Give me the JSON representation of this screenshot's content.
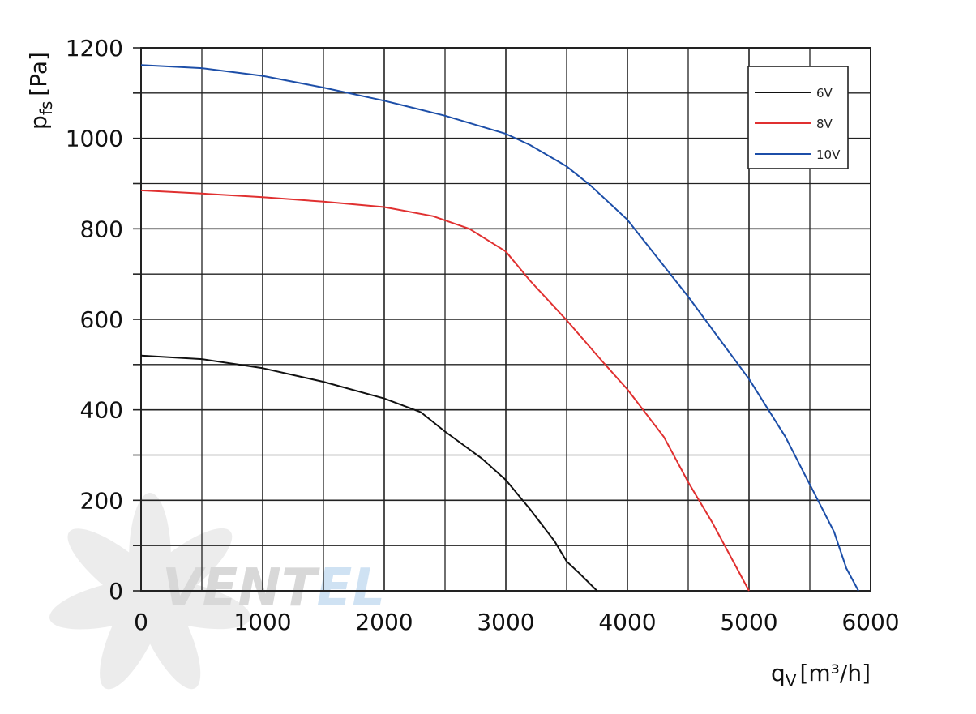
{
  "chart_data": {
    "type": "line",
    "xlabel": {
      "main": "q",
      "sub": "V",
      "unit": "[m³/h]"
    },
    "ylabel": {
      "main": "p",
      "sub": "fs",
      "unit": "[Pa]"
    },
    "xlim": [
      0,
      6000
    ],
    "ylim": [
      0,
      1200
    ],
    "x_ticks": [
      0,
      1000,
      2000,
      3000,
      4000,
      5000,
      6000
    ],
    "y_ticks": [
      0,
      200,
      400,
      600,
      800,
      1000,
      1200
    ],
    "x_tick_labels": [
      "0",
      "1000",
      "2000",
      "3000",
      "4000",
      "5000",
      "6000"
    ],
    "y_tick_labels": [
      "0",
      "200",
      "400",
      "600",
      "800",
      "1000",
      "1200"
    ],
    "x_minor_step": 500,
    "y_minor_step": 100,
    "grid": true,
    "legend_position": "top-right",
    "series": [
      {
        "name": "6V",
        "color": "#111111",
        "points": [
          [
            0,
            520
          ],
          [
            500,
            512
          ],
          [
            1000,
            492
          ],
          [
            1500,
            462
          ],
          [
            2000,
            425
          ],
          [
            2300,
            395
          ],
          [
            2500,
            352
          ],
          [
            2800,
            293
          ],
          [
            3000,
            245
          ],
          [
            3200,
            180
          ],
          [
            3400,
            110
          ],
          [
            3500,
            65
          ],
          [
            3600,
            40
          ],
          [
            3750,
            0
          ]
        ]
      },
      {
        "name": "8V",
        "color": "#e03030",
        "points": [
          [
            0,
            885
          ],
          [
            500,
            878
          ],
          [
            1000,
            870
          ],
          [
            1500,
            860
          ],
          [
            2000,
            848
          ],
          [
            2400,
            828
          ],
          [
            2700,
            800
          ],
          [
            3000,
            750
          ],
          [
            3200,
            685
          ],
          [
            3500,
            598
          ],
          [
            3800,
            505
          ],
          [
            4000,
            445
          ],
          [
            4300,
            340
          ],
          [
            4500,
            240
          ],
          [
            4700,
            150
          ],
          [
            5000,
            0
          ]
        ]
      },
      {
        "name": "10V",
        "color": "#1c4ea8",
        "points": [
          [
            0,
            1162
          ],
          [
            500,
            1155
          ],
          [
            1000,
            1138
          ],
          [
            1500,
            1112
          ],
          [
            2000,
            1083
          ],
          [
            2500,
            1050
          ],
          [
            3000,
            1010
          ],
          [
            3200,
            985
          ],
          [
            3500,
            938
          ],
          [
            3700,
            895
          ],
          [
            4000,
            820
          ],
          [
            4500,
            650
          ],
          [
            5000,
            468
          ],
          [
            5300,
            340
          ],
          [
            5500,
            235
          ],
          [
            5700,
            130
          ],
          [
            5800,
            50
          ],
          [
            5900,
            0
          ]
        ]
      }
    ]
  },
  "watermark": {
    "text_dark": "VENT",
    "text_light": "EL",
    "color_dark": "#d8d8d8",
    "color_light": "#cfe2f3"
  }
}
